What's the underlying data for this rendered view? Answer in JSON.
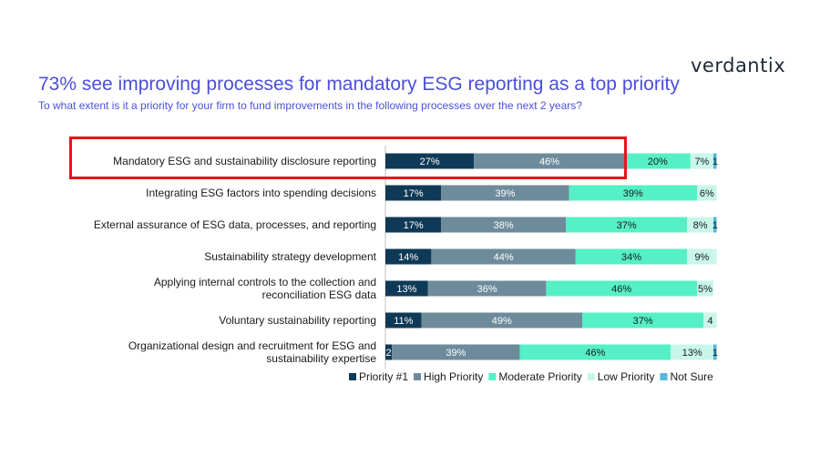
{
  "brand": {
    "logo_text": "verdantix"
  },
  "title": "73% see improving processes for mandatory ESG reporting as a top priority",
  "subtitle": "To what extent is it a priority for your firm to fund improvements in the following processes over the next 2 years?",
  "colors": {
    "title": "#4b4fd9",
    "highlight_border": "#e8141b",
    "Priority #1": "#0f3a57",
    "High Priority": "#6d8b9b",
    "Moderate Priority": "#55f0c6",
    "Low Priority": "#c8f7ea",
    "Not Sure": "#53b9dc"
  },
  "chart_data": {
    "type": "bar",
    "orientation": "horizontal",
    "stacked": true,
    "categories": [
      "Mandatory ESG and sustainability disclosure reporting",
      "Integrating  ESG factors into spending decisions",
      "External assurance of ESG data, processes, and reporting",
      "Sustainability strategy  development",
      "Applying internal controls to the collection and reconciliation ESG data",
      "Voluntary sustainability reporting",
      "Organizational  design and recruitment  for ESG and sustainability expertise"
    ],
    "series": [
      {
        "name": "Priority #1",
        "values": [
          27,
          17,
          17,
          14,
          13,
          11,
          2
        ]
      },
      {
        "name": "High Priority",
        "values": [
          46,
          39,
          38,
          44,
          36,
          49,
          39
        ]
      },
      {
        "name": "Moderate Priority",
        "values": [
          20,
          39,
          37,
          34,
          46,
          37,
          46
        ]
      },
      {
        "name": "Low Priority",
        "values": [
          7,
          6,
          8,
          9,
          5,
          4,
          13
        ]
      },
      {
        "name": "Not Sure",
        "values": [
          1,
          0,
          1,
          0,
          0,
          0,
          1
        ]
      }
    ],
    "data_labels": [
      [
        "27%",
        "46%",
        "20%",
        "7%",
        "1"
      ],
      [
        "17%",
        "39%",
        "39%",
        "6%",
        ""
      ],
      [
        "17%",
        "38%",
        "37%",
        "8%",
        "1"
      ],
      [
        "14%",
        "44%",
        "34%",
        "9%",
        ""
      ],
      [
        "13%",
        "36%",
        "46%",
        "5%",
        ""
      ],
      [
        "11%",
        "49%",
        "37%",
        "4",
        ""
      ],
      [
        "2",
        "39%",
        "46%",
        "13%",
        "1"
      ]
    ],
    "xlim": [
      0,
      100
    ],
    "legend_position": "bottom",
    "highlighted_category_index": 0
  }
}
